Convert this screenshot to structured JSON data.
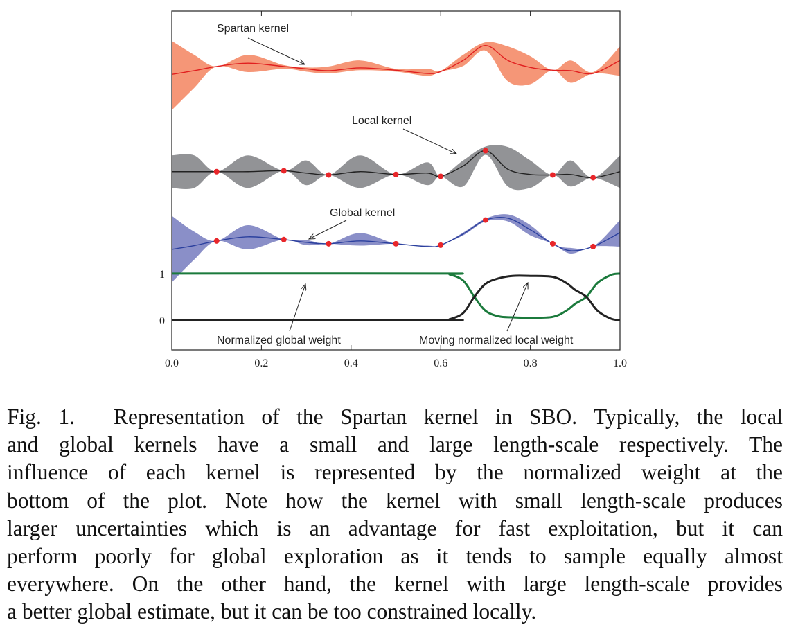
{
  "chart_data": {
    "type": "line",
    "xlim": [
      0.0,
      1.0
    ],
    "ylim": [
      -0.64,
      6.64
    ],
    "xticks": [
      "0.0",
      "0.2",
      "0.4",
      "0.6",
      "0.8",
      "1.0"
    ],
    "xtick_values": [
      0,
      0.2,
      0.4,
      0.6,
      0.8,
      1.0
    ],
    "yticks": [
      "0",
      "1"
    ],
    "ytick_values": [
      0,
      1
    ],
    "samples": {
      "x": [
        0,
        0.05,
        0.1,
        0.17,
        0.25,
        0.3,
        0.35,
        0.42,
        0.5,
        0.57,
        0.6,
        0.65,
        0.7,
        0.75,
        0.8,
        0.85,
        0.89,
        0.94,
        1.0
      ]
    },
    "series": [
      {
        "name": "Spartan kernel",
        "color": "#e11f1f",
        "fill": "#f59677",
        "mean": [
          5.28,
          5.36,
          5.45,
          5.52,
          5.45,
          5.4,
          5.36,
          5.42,
          5.37,
          5.3,
          5.34,
          5.58,
          5.9,
          5.58,
          5.43,
          5.37,
          5.36,
          5.3,
          5.58
        ],
        "upper": [
          6.0,
          5.7,
          5.45,
          5.7,
          5.48,
          5.43,
          5.45,
          5.58,
          5.4,
          5.4,
          5.36,
          5.7,
          5.97,
          5.88,
          5.67,
          5.37,
          5.58,
          5.33,
          5.88
        ],
        "lower": [
          4.51,
          4.99,
          5.45,
          5.33,
          5.4,
          5.34,
          5.3,
          5.37,
          5.34,
          5.25,
          5.34,
          5.46,
          5.79,
          5.13,
          5.07,
          5.37,
          5.1,
          5.3,
          5.25
        ]
      },
      {
        "name": "Local kernel",
        "color": "#222222",
        "fill": "#929396",
        "mean": [
          3.19,
          3.19,
          3.19,
          3.19,
          3.21,
          3.16,
          3.12,
          3.19,
          3.13,
          3.16,
          3.09,
          3.31,
          3.64,
          3.24,
          3.13,
          3.12,
          3.13,
          3.06,
          3.19
        ],
        "upper": [
          3.54,
          3.54,
          3.19,
          3.54,
          3.21,
          3.43,
          3.12,
          3.54,
          3.13,
          3.39,
          3.09,
          3.43,
          3.73,
          3.72,
          3.43,
          3.12,
          3.43,
          3.06,
          3.54
        ],
        "lower": [
          2.84,
          2.84,
          3.19,
          2.84,
          3.21,
          2.9,
          3.12,
          2.84,
          3.13,
          2.9,
          3.09,
          2.87,
          3.55,
          2.87,
          2.84,
          3.12,
          2.87,
          3.06,
          2.84
        ]
      },
      {
        "name": "Global kernel",
        "color": "#2b409e",
        "fill": "#8a8fc8",
        "mean": [
          1.52,
          1.6,
          1.7,
          1.79,
          1.73,
          1.67,
          1.64,
          1.7,
          1.64,
          1.58,
          1.61,
          1.85,
          2.15,
          2.19,
          1.94,
          1.64,
          1.49,
          1.58,
          1.88
        ],
        "upper": [
          2.24,
          1.9,
          1.7,
          2.04,
          1.73,
          1.72,
          1.64,
          1.87,
          1.64,
          1.6,
          1.61,
          1.88,
          2.18,
          2.27,
          2.04,
          1.64,
          1.55,
          1.58,
          2.15
        ],
        "lower": [
          0.81,
          1.3,
          1.7,
          1.52,
          1.73,
          1.61,
          1.64,
          1.6,
          1.64,
          1.57,
          1.61,
          1.82,
          2.12,
          2.12,
          1.82,
          1.64,
          1.43,
          1.58,
          1.58
        ]
      }
    ],
    "observations": {
      "x": [
        0.1,
        0.25,
        0.35,
        0.5,
        0.6,
        0.7,
        0.85,
        0.94
      ],
      "local_y": [
        3.19,
        3.21,
        3.12,
        3.13,
        3.09,
        3.64,
        3.12,
        3.06
      ],
      "global_y": [
        1.7,
        1.73,
        1.64,
        1.64,
        1.61,
        2.15,
        1.64,
        1.58
      ],
      "color": "#e8262a"
    },
    "weights": {
      "x": [
        0,
        0.6,
        0.62,
        0.65,
        0.675,
        0.7,
        0.73,
        0.76,
        0.8,
        0.85,
        0.88,
        0.9,
        0.925,
        0.95,
        0.98,
        1.0
      ],
      "global": {
        "name": "Normalized global weight",
        "color": "#1b7a3c",
        "values": [
          1,
          1,
          0.98,
          0.85,
          0.5,
          0.2,
          0.08,
          0.06,
          0.05,
          0.07,
          0.2,
          0.35,
          0.5,
          0.8,
          0.97,
          1
        ]
      },
      "local": {
        "name": "Moving normalized local weight",
        "color": "#222222",
        "values": [
          0,
          0,
          0.02,
          0.15,
          0.5,
          0.78,
          0.9,
          0.95,
          0.95,
          0.93,
          0.8,
          0.65,
          0.5,
          0.2,
          0.03,
          0
        ]
      }
    },
    "annotations": [
      "Spartan kernel",
      "Local kernel",
      "Global kernel",
      "Normalized global weight",
      "Moving normalized local weight"
    ]
  },
  "caption": {
    "lines": [
      "Fig. 1.  Representation of the Spartan kernel in SBO. Typically, the local",
      "and global kernels have a small and large length-scale respectively. The",
      "influence of each kernel is represented by the normalized weight at the",
      "bottom of the plot. Note how the kernel with small length-scale produces",
      "larger uncertainties which is an advantage for fast exploitation, but it can",
      "perform poorly for global exploration as it tends to sample equally almost",
      "everywhere. On the other hand, the kernel with large length-scale provides",
      "a better global estimate, but it can be too constrained locally."
    ]
  }
}
